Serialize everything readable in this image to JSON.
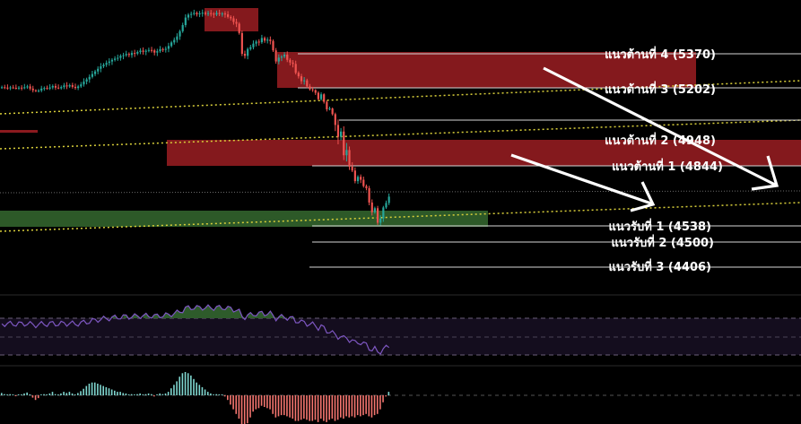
{
  "chart_data": {
    "type": "candlestick",
    "colors": {
      "background": "#000000",
      "bull": "#26a69a",
      "bear": "#ef5350",
      "resistance_zone": "#8b1a1f",
      "support_zone": "#2f5e2a",
      "trendline": "#d9cf3a",
      "level_line": "#d6d6d6",
      "arrow": "#ffffff",
      "rsi_line": "#7e57c2",
      "rsi_fill": "#2e5b2b",
      "macd_bull": "#7fd6cf",
      "macd_bear": "#f4756f"
    },
    "levels": [
      {
        "label": "แนวต้านที่  4 (5370)",
        "value": 5370,
        "kind": "resistance"
      },
      {
        "label": "แนวต้านที่  3 (5202)",
        "value": 5202,
        "kind": "resistance"
      },
      {
        "label": "แนวต้านที่ 2 (4948)",
        "value": 4948,
        "kind": "resistance"
      },
      {
        "label": "แนวต้านที่ 1 (4844)",
        "value": 4844,
        "kind": "resistance"
      },
      {
        "label": "แนวรับที่ 1 (4538)",
        "value": 4538,
        "kind": "support"
      },
      {
        "label": "แนวรับที่ 2 (4500)",
        "value": 4500,
        "kind": "support"
      },
      {
        "label": "แนวรับที่ 3 (4406)",
        "value": 4406,
        "kind": "support"
      }
    ],
    "closes": [
      5205,
      5203,
      5201,
      5204,
      5202,
      5200,
      5203,
      5199,
      5205,
      5209,
      5196,
      5183,
      5176,
      5181,
      5196,
      5201,
      5196,
      5204,
      5211,
      5203,
      5199,
      5206,
      5214,
      5209,
      5215,
      5207,
      5201,
      5209,
      5219,
      5233,
      5244,
      5256,
      5270,
      5283,
      5296,
      5308,
      5316,
      5325,
      5332,
      5340,
      5346,
      5350,
      5360,
      5363,
      5369,
      5364,
      5374,
      5371,
      5379,
      5386,
      5380,
      5385,
      5389,
      5387,
      5376,
      5383,
      5393,
      5390,
      5395,
      5409,
      5427,
      5440,
      5457,
      5483,
      5514,
      5552,
      5566,
      5570,
      5575,
      5568,
      5573,
      5576,
      5570,
      5574,
      5571,
      5567,
      5575,
      5570,
      5572,
      5568,
      5555,
      5548,
      5530,
      5521,
      5474,
      5370,
      5360,
      5394,
      5403,
      5421,
      5431,
      5428,
      5449,
      5436,
      5441,
      5434,
      5387,
      5332,
      5351,
      5356,
      5366,
      5340,
      5327,
      5320,
      5276,
      5259,
      5235,
      5239,
      5209,
      5191,
      5184,
      5163,
      5113,
      5151,
      5092,
      5033,
      5039,
      4995,
      4937,
      4910,
      4922,
      4868,
      4880,
      4840,
      4820,
      4766,
      4788,
      4773,
      4741,
      4730,
      4657,
      4608,
      4628,
      4554,
      4576,
      4632,
      4655,
      4687
    ],
    "macd": [
      0.1,
      0.05,
      0.0,
      0.05,
      0.02,
      -0.02,
      0.04,
      0.03,
      0.08,
      0.12,
      0.0,
      -0.1,
      -0.2,
      -0.12,
      0.0,
      0.05,
      0.02,
      0.08,
      0.15,
      0.05,
      0.02,
      0.08,
      0.15,
      0.1,
      0.15,
      0.08,
      0.02,
      0.1,
      0.18,
      0.28,
      0.4,
      0.5,
      0.55,
      0.55,
      0.5,
      0.45,
      0.4,
      0.35,
      0.3,
      0.25,
      0.2,
      0.15,
      0.15,
      0.1,
      0.08,
      0.02,
      0.05,
      0.02,
      0.05,
      0.08,
      0.02,
      0.05,
      0.08,
      0.05,
      -0.05,
      0.02,
      0.08,
      0.05,
      0.08,
      0.15,
      0.3,
      0.45,
      0.6,
      0.8,
      0.95,
      1.0,
      0.95,
      0.85,
      0.7,
      0.55,
      0.45,
      0.35,
      0.25,
      0.15,
      0.08,
      0.02,
      0.05,
      0.0,
      0.02,
      -0.05,
      -0.2,
      -0.4,
      -0.6,
      -0.8,
      -1.0,
      -1.25,
      -1.35,
      -1.2,
      -0.95,
      -0.7,
      -0.6,
      -0.55,
      -0.45,
      -0.5,
      -0.55,
      -0.6,
      -0.8,
      -0.95,
      -0.9,
      -0.85,
      -0.85,
      -0.9,
      -0.95,
      -1.0,
      -1.1,
      -1.1,
      -1.05,
      -1.0,
      -1.05,
      -1.1,
      -1.1,
      -1.05,
      -1.15,
      -1.0,
      -1.1,
      -1.15,
      -1.05,
      -1.0,
      -1.1,
      -1.05,
      -0.95,
      -1.0,
      -0.9,
      -0.95,
      -0.9,
      -0.95,
      -0.85,
      -0.9,
      -0.85,
      -0.8,
      -0.9,
      -0.95,
      -0.85,
      -0.8,
      -0.6,
      -0.3,
      -0.05,
      0.15
    ]
  }
}
